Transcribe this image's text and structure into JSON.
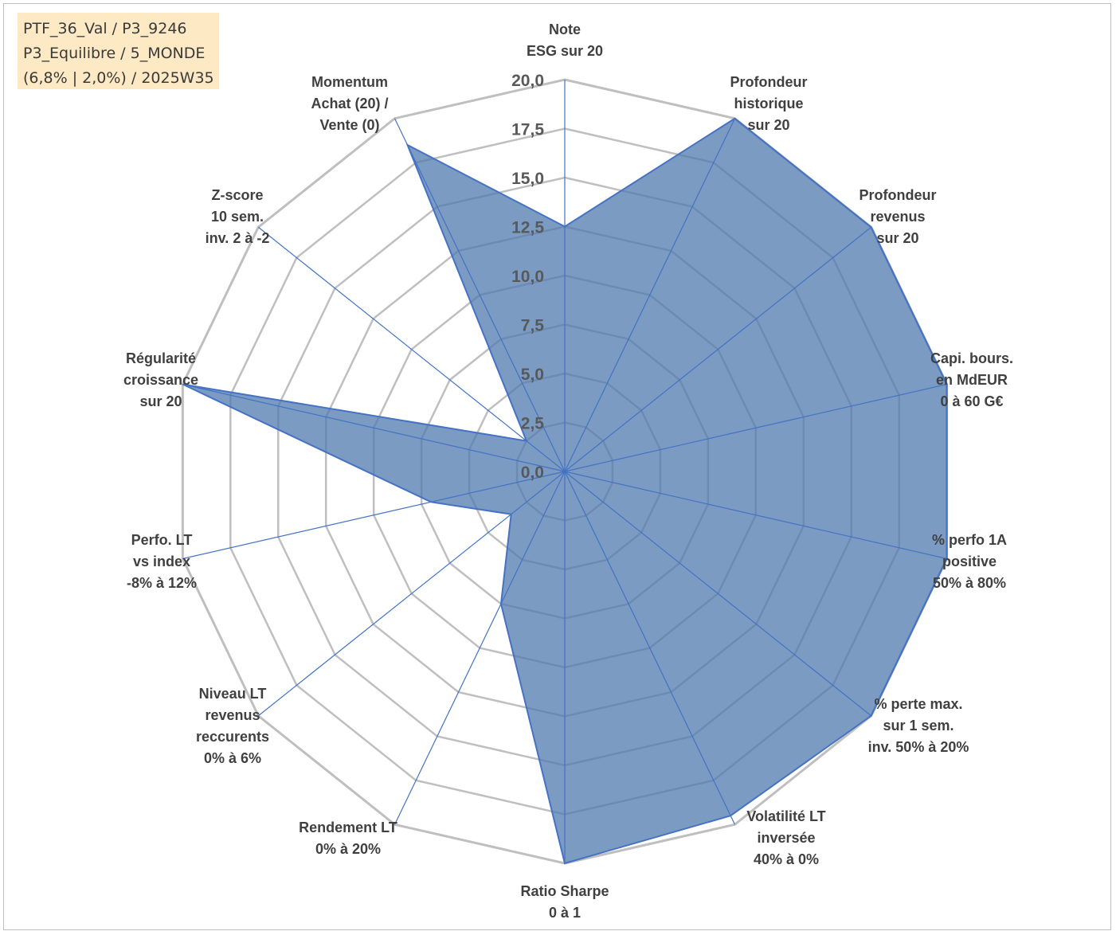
{
  "info": {
    "line1": "PTF_36_Val / P3_9246",
    "line2": "P3_Equilibre / 5_MONDE",
    "line3": "(6,8% | 2,0%) / 2025W35"
  },
  "chart_data": {
    "type": "radar",
    "rmin": 0,
    "rmax": 20,
    "ticks": [
      "0,0",
      "2,5",
      "5,0",
      "7,5",
      "10,0",
      "12,5",
      "15,0",
      "17,5",
      "20,0"
    ],
    "axes": [
      [
        "Note",
        "ESG sur 20"
      ],
      [
        "Profondeur",
        "historique",
        "sur 20"
      ],
      [
        "Profondeur",
        "revenus",
        "sur 20"
      ],
      [
        "Capi. bours.",
        "en MdEUR",
        "0 à 60 G€"
      ],
      [
        "% perfo 1A",
        "positive",
        "50% à 80%"
      ],
      [
        "% perte max.",
        "sur 1 sem.",
        "inv. 50% à 20%"
      ],
      [
        "Volatilité LT",
        "inversée",
        "40% à 0%"
      ],
      [
        "Ratio Sharpe",
        "0 à 1"
      ],
      [
        "Rendement LT",
        "0% à 20%"
      ],
      [
        "Niveau LT",
        "revenus",
        "reccurents",
        "0% à 6%"
      ],
      [
        "Perfo. LT",
        "vs index",
        "-8% à 12%"
      ],
      [
        "Régularité",
        "croissance",
        "sur 20"
      ],
      [
        "Z-score",
        "10 sem.",
        "inv. 2 à -2"
      ],
      [
        "Momentum",
        "Achat (20) /",
        "Vente (0)"
      ]
    ],
    "values": [
      12.5,
      20,
      20,
      20,
      20,
      20,
      19.5,
      20,
      7.5,
      3.5,
      7.0,
      20,
      2.5,
      18.5
    ],
    "colors": {
      "fill": "#4f79ad",
      "stroke": "#4472c4",
      "grid": "#bfbfbf"
    }
  }
}
